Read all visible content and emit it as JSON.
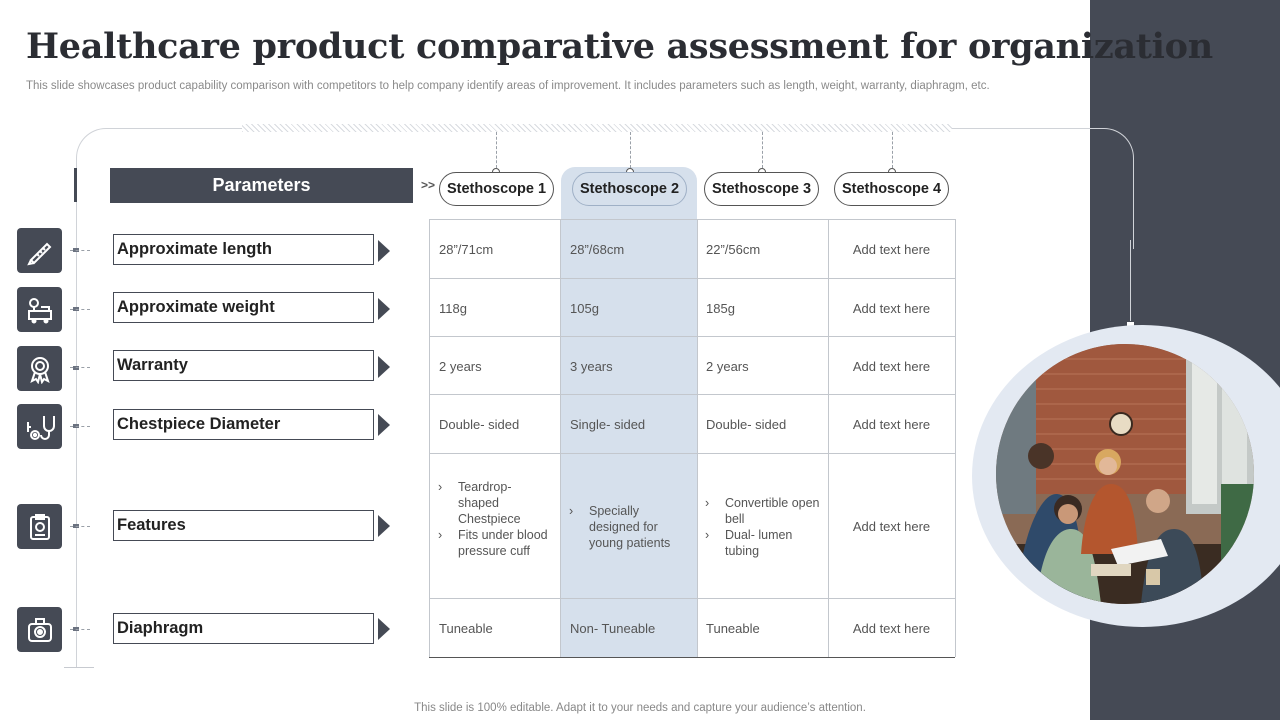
{
  "title": "Healthcare product comparative assessment for organization",
  "subtitle": "This slide showcases product capability comparison with competitors to help company identify areas of improvement. It includes parameters such as length, weight, warranty, diaphragm, etc.",
  "footer": "This slide is 100% editable. Adapt it to your needs and capture your audience’s attention.",
  "parameters_header": "Parameters",
  "chevrons": ">>",
  "columns": [
    "Stethoscope 1",
    "Stethoscope 2",
    "Stethoscope 3",
    "Stethoscope 4"
  ],
  "highlighted_column": "Stethoscope 2",
  "rows": [
    {
      "label": "Approximate length",
      "icon": "ruler-pencil-icon",
      "values": [
        "28”/71cm",
        "28”/68cm",
        "22”/56cm",
        "Add text here"
      ]
    },
    {
      "label": "Approximate weight",
      "icon": "weight-scale-icon",
      "values": [
        "118g",
        "105g",
        "185g",
        "Add text here"
      ]
    },
    {
      "label": "Warranty",
      "icon": "award-badge-icon",
      "values": [
        "2 years",
        "3 years",
        "2 years",
        "Add text here"
      ]
    },
    {
      "label": "Chestpiece Diameter",
      "icon": "stethoscope-icon",
      "values": [
        "Double- sided",
        "Single- sided",
        "Double- sided",
        "Add text here"
      ]
    },
    {
      "label": "Features",
      "icon": "clipboard-icon",
      "features": [
        [
          "Teardrop- shaped Chestpiece",
          "Fits under blood pressure cuff"
        ],
        [
          "Specially designed for young patients"
        ],
        [
          "Convertible open bell",
          "Dual- lumen tubing"
        ]
      ],
      "values": [
        "",
        "",
        "",
        "Add text here"
      ]
    },
    {
      "label": "Diaphragm",
      "icon": "camera-lens-icon",
      "values": [
        "Tuneable",
        "Non- Tuneable",
        "Tuneable",
        "Add text here"
      ]
    }
  ],
  "colors": {
    "dark_panel": "#454a55",
    "highlight": "#d6e0ec",
    "ring": "#e3e9f2"
  },
  "photo": "team-meeting-photo"
}
